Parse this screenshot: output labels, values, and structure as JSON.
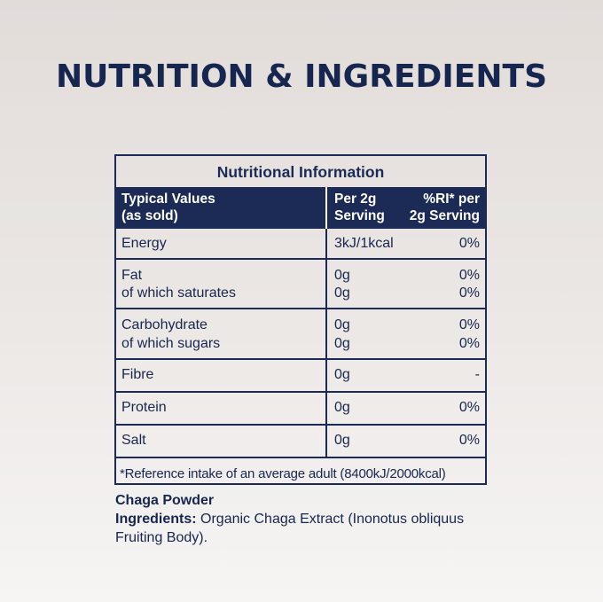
{
  "title": "NUTRITION & INGREDIENTS",
  "panel": {
    "heading": "Nutritional Information",
    "columns": {
      "typical_line1": "Typical Values",
      "typical_line2": "(as sold)",
      "per_line1": "Per 2g",
      "per_line2": "Serving",
      "ri_line1": "%RI* per",
      "ri_line2": "2g Serving"
    },
    "rows": [
      {
        "name": "Energy",
        "value": "3kJ/1kcal",
        "ri": "0%"
      },
      {
        "name": "Fat",
        "value": "0g",
        "ri": "0%",
        "sub_name": "of which saturates",
        "sub_value": "0g",
        "sub_ri": "0%"
      },
      {
        "name": "Carbohydrate",
        "value": "0g",
        "ri": "0%",
        "sub_name": "of which sugars",
        "sub_value": "0g",
        "sub_ri": "0%"
      },
      {
        "name": "Fibre",
        "value": "0g",
        "ri": "-"
      },
      {
        "name": "Protein",
        "value": "0g",
        "ri": "0%"
      },
      {
        "name": "Salt",
        "value": "0g",
        "ri": "0%"
      }
    ],
    "footnote": "*Reference intake of an average adult (8400kJ/2000kcal)"
  },
  "product": {
    "name": "Chaga Powder",
    "ingredients_label": "Ingredients:",
    "ingredients_text": "Organic Chaga Extract (Inonotus obliquus Fruiting Body)."
  }
}
